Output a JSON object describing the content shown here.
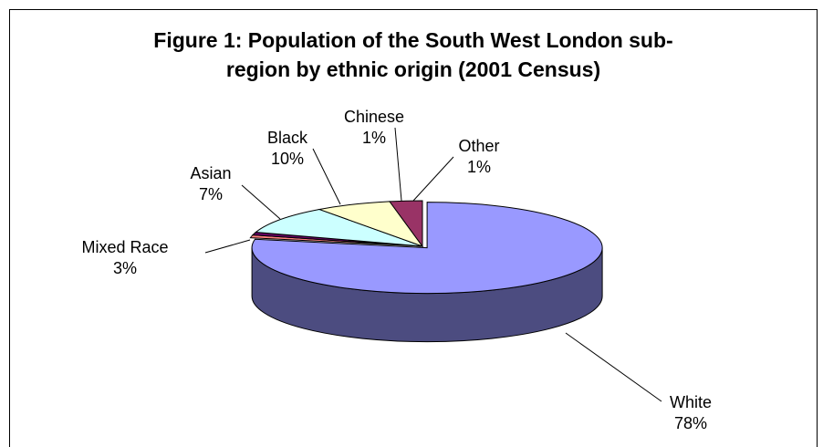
{
  "chart_data": {
    "type": "pie",
    "title_lines": [
      "Figure 1: Population of the South West London sub-",
      "region by ethnic origin (2001 Census)"
    ],
    "slices": [
      {
        "name": "White",
        "value": 78,
        "value_label": "78%",
        "color": "#9999FF",
        "side_color": "#4C4C80"
      },
      {
        "name": "Mixed Race",
        "value": 3,
        "value_label": "3%",
        "color": "#993366",
        "side_color": "#4C1933"
      },
      {
        "name": "Asian",
        "value": 7,
        "value_label": "7%",
        "color": "#FFFFCC",
        "side_color": "#808066"
      },
      {
        "name": "Black",
        "value": 10,
        "value_label": "10%",
        "color": "#CCFFFF",
        "side_color": "#668080"
      },
      {
        "name": "Chinese",
        "value": 1,
        "value_label": "1%",
        "color": "#660066",
        "side_color": "#330033"
      },
      {
        "name": "Other",
        "value": 1,
        "value_label": "1%",
        "color": "#FF8080",
        "side_color": "#804040"
      }
    ],
    "legend": "none",
    "style": "3d-exploded-first"
  }
}
